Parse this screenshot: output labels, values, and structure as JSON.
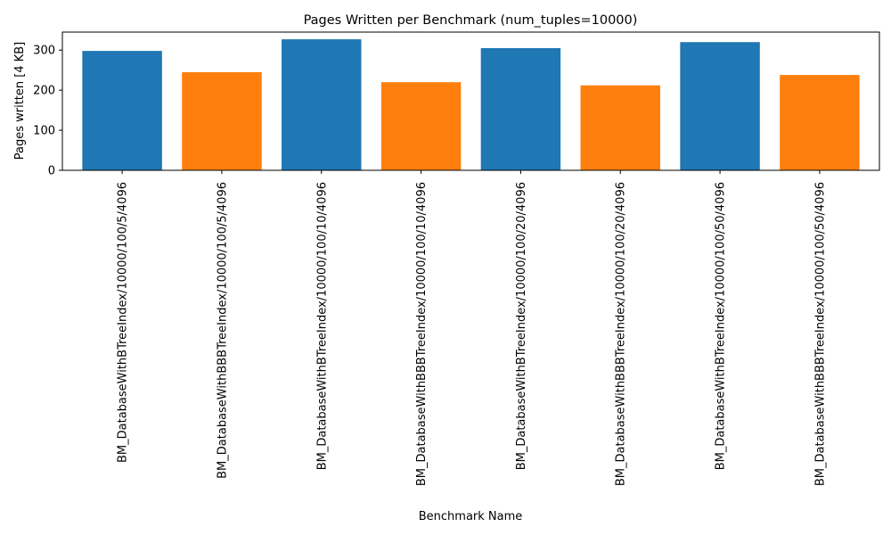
{
  "chart_data": {
    "type": "bar",
    "title": "Pages Written per Benchmark (num_tuples=10000)",
    "xlabel": "Benchmark Name",
    "ylabel": "Pages written [4 KB]",
    "ylim": [
      0,
      345
    ],
    "yticks": [
      0,
      100,
      200,
      300
    ],
    "grid": false,
    "categories": [
      "BM_DatabaseWithBTreeIndex/10000/100/5/4096",
      "BM_DatabaseWithBBBTreeIndex/10000/100/5/4096",
      "BM_DatabaseWithBTreeIndex/10000/100/10/4096",
      "BM_DatabaseWithBBBTreeIndex/10000/100/10/4096",
      "BM_DatabaseWithBTreeIndex/10000/100/20/4096",
      "BM_DatabaseWithBBBTreeIndex/10000/100/20/4096",
      "BM_DatabaseWithBTreeIndex/10000/100/50/4096",
      "BM_DatabaseWithBBBTreeIndex/10000/100/50/4096"
    ],
    "values": [
      298,
      245,
      327,
      220,
      305,
      212,
      320,
      238
    ],
    "colors": [
      "#1f77b4",
      "#ff7f0e",
      "#1f77b4",
      "#ff7f0e",
      "#1f77b4",
      "#ff7f0e",
      "#1f77b4",
      "#ff7f0e"
    ]
  }
}
